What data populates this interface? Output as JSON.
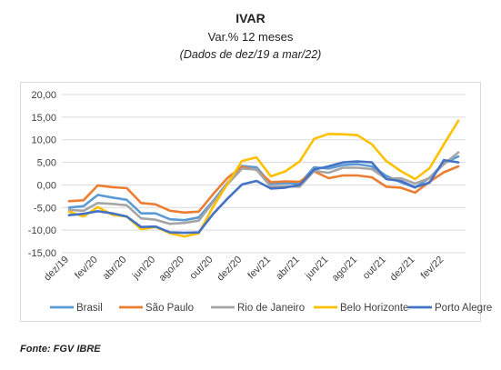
{
  "header": {
    "title": "IVAR",
    "subtitle": "Var.% 12 meses",
    "note": "(Dados de dez/19 a mar/22)"
  },
  "source": "Fonte: FGV IBRE",
  "chart_data": {
    "type": "line",
    "title": "IVAR",
    "ylim": [
      -15,
      20
    ],
    "yticks": [
      -15,
      -10,
      -5,
      0,
      5,
      10,
      15,
      20
    ],
    "ytick_labels": [
      "-15,00",
      "-10,00",
      "-5,00",
      "0,00",
      "5,00",
      "10,00",
      "15,00",
      "20,00"
    ],
    "x": [
      "dez/19",
      "jan/20",
      "fev/20",
      "mar/20",
      "abr/20",
      "mai/20",
      "jun/20",
      "jul/20",
      "ago/20",
      "set/20",
      "out/20",
      "nov/20",
      "dez/20",
      "jan/21",
      "fev/21",
      "mar/21",
      "abr/21",
      "mai/21",
      "jun/21",
      "jul/21",
      "ago/21",
      "set/21",
      "out/21",
      "nov/21",
      "dez/21",
      "jan/22",
      "fev/22",
      "mar/22"
    ],
    "xtick_labels": [
      "dez/19",
      "fev/20",
      "abr/20",
      "jun/20",
      "ago/20",
      "out/20",
      "dez/20",
      "fev/21",
      "abr/21",
      "jun/21",
      "ago/21",
      "out/21",
      "dez/21",
      "fev/22"
    ],
    "grid": true,
    "legend_position": "bottom",
    "series": [
      {
        "name": "Brasil",
        "color": "#5b9bd5",
        "values": [
          -5.0,
          -4.7,
          -2.2,
          -2.8,
          -3.3,
          -6.3,
          -6.3,
          -7.6,
          -7.8,
          -7.2,
          -3.5,
          0.5,
          4.2,
          3.9,
          0.2,
          0.4,
          0.3,
          3.9,
          3.6,
          4.4,
          4.6,
          4.1,
          2.0,
          0.6,
          -0.6,
          1.6,
          4.8,
          6.3
        ]
      },
      {
        "name": "São Paulo",
        "color": "#ed7d31",
        "values": [
          -3.6,
          -3.4,
          -0.1,
          -0.5,
          -0.7,
          -4.0,
          -4.3,
          -5.7,
          -6.1,
          -5.9,
          -2.0,
          1.6,
          4.0,
          3.3,
          0.6,
          0.8,
          0.7,
          3.0,
          1.5,
          2.1,
          2.1,
          1.7,
          -0.4,
          -0.6,
          -1.7,
          0.7,
          2.8,
          4.1
        ]
      },
      {
        "name": "Rio de Janeiro",
        "color": "#a5a5a5",
        "values": [
          -5.5,
          -5.7,
          -4.0,
          -4.2,
          -4.5,
          -7.4,
          -7.7,
          -8.6,
          -8.4,
          -7.9,
          -3.8,
          0.2,
          3.6,
          3.4,
          -0.4,
          -0.3,
          -0.4,
          3.1,
          2.7,
          3.8,
          3.8,
          3.5,
          1.4,
          1.5,
          0.3,
          1.5,
          4.6,
          7.2
        ]
      },
      {
        "name": "Belo Horizonte",
        "color": "#ffc000",
        "values": [
          -5.9,
          -7.0,
          -4.9,
          -6.6,
          -7.0,
          -9.8,
          -9.3,
          -10.7,
          -11.4,
          -10.7,
          -4.8,
          0.3,
          5.3,
          6.1,
          1.9,
          3.0,
          5.2,
          10.2,
          11.3,
          11.2,
          11.0,
          9.0,
          5.3,
          3.1,
          1.3,
          3.7,
          9.0,
          14.2
        ]
      },
      {
        "name": "Porto Alegre",
        "color": "#4472c4",
        "values": [
          -6.7,
          -6.4,
          -5.8,
          -6.3,
          -7.0,
          -9.3,
          -9.2,
          -10.5,
          -10.6,
          -10.5,
          -6.4,
          -3.0,
          0.1,
          0.9,
          -0.8,
          -0.6,
          0.0,
          3.4,
          4.1,
          5.0,
          5.2,
          5.0,
          1.3,
          0.9,
          -0.5,
          0.5,
          5.5,
          5.0
        ]
      }
    ]
  }
}
